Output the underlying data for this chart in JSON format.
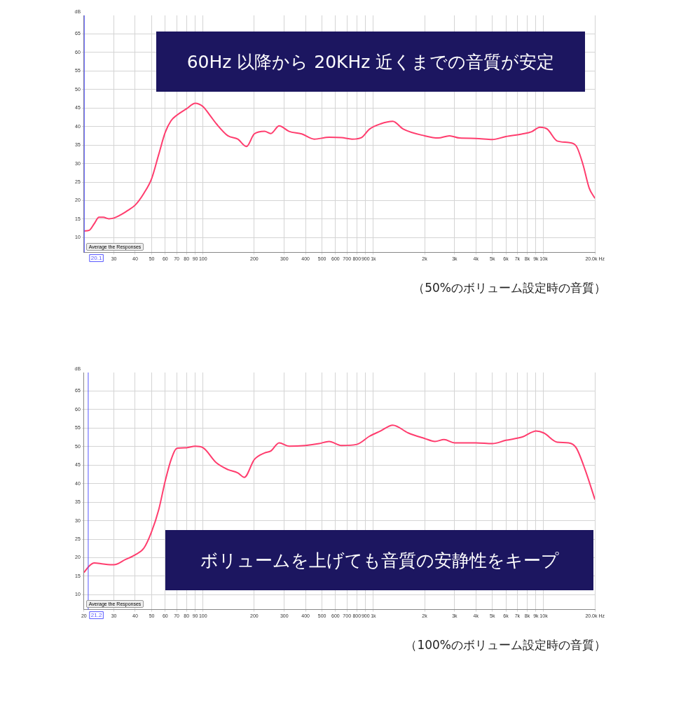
{
  "chart_data": [
    {
      "type": "line",
      "title": "60Hz 以降から 20KHz 近くまでの音質が安定",
      "ylabel": "dB",
      "log": "x",
      "grid": true,
      "legend": false,
      "marker": "none",
      "line_style": "solid",
      "xlim": [
        20,
        20000
      ],
      "ylim": [
        6,
        70
      ],
      "xticks": [
        30,
        40,
        50,
        60,
        70,
        80,
        90,
        100,
        200,
        300,
        400,
        500,
        600,
        700,
        800,
        900,
        {
          "value": 1000,
          "label": "1k"
        },
        {
          "value": 2000,
          "label": "2k"
        },
        {
          "value": 3000,
          "label": "3k"
        },
        {
          "value": 4000,
          "label": "4k"
        },
        {
          "value": 5000,
          "label": "5k"
        },
        {
          "value": 6000,
          "label": "6k"
        },
        {
          "value": 7000,
          "label": "7k"
        },
        {
          "value": 8000,
          "label": "8k"
        },
        {
          "value": 9000,
          "label": "9k"
        },
        {
          "value": 10000,
          "label": "10k"
        },
        {
          "value": 20000,
          "label": "20.0k Hz"
        }
      ],
      "yticks": [
        10,
        15,
        20,
        25,
        30,
        35,
        40,
        45,
        50,
        55,
        60,
        65
      ],
      "ref_lines": [
        {
          "axis": "x",
          "value": 20.1,
          "label": "20.1",
          "color": "#5555ff"
        }
      ],
      "annotations": [
        "（50%のボリューム設定時の音質）",
        "Average the Responses"
      ],
      "series": [
        {
          "color": "#ff3d6e",
          "x": [
            20,
            21.5,
            23,
            24.5,
            26,
            28,
            30,
            33,
            36,
            40,
            45,
            50,
            55,
            60,
            65,
            70,
            80,
            90,
            100,
            110,
            120,
            140,
            160,
            180,
            200,
            230,
            250,
            280,
            320,
            380,
            450,
            550,
            650,
            750,
            850,
            950,
            1100,
            1300,
            1500,
            2000,
            2400,
            2800,
            3200,
            4000,
            5000,
            6000,
            7500,
            8500,
            9500,
            10500,
            12000,
            14000,
            15500,
            17000,
            18500,
            20000
          ],
          "values": [
            11.8,
            12.0,
            13.8,
            15.5,
            15.5,
            15.1,
            15.3,
            16.2,
            17.3,
            18.8,
            22,
            26,
            32.5,
            38.4,
            41.6,
            43,
            44.8,
            46.3,
            45.4,
            43,
            40.7,
            37.5,
            36.6,
            34.6,
            38,
            38.7,
            38.1,
            40.2,
            38.7,
            38,
            36.6,
            37.1,
            37,
            36.6,
            37,
            39.3,
            40.7,
            41.4,
            39.3,
            37.5,
            36.9,
            37.5,
            36.9,
            36.8,
            36.5,
            37.3,
            38,
            38.6,
            39.8,
            39.3,
            36.1,
            35.7,
            34.8,
            29.8,
            23.4,
            20.6
          ]
        }
      ]
    },
    {
      "type": "line",
      "title": "ボリュームを上げても音質の安静性をキープ",
      "ylabel": "dB",
      "log": "x",
      "grid": true,
      "legend": false,
      "marker": "none",
      "line_style": "solid",
      "xlim": [
        20,
        20000
      ],
      "ylim": [
        6,
        70
      ],
      "xticks": [
        20,
        30,
        40,
        50,
        60,
        70,
        80,
        90,
        100,
        200,
        300,
        400,
        500,
        600,
        700,
        800,
        900,
        {
          "value": 1000,
          "label": "1k"
        },
        {
          "value": 2000,
          "label": "2k"
        },
        {
          "value": 3000,
          "label": "3k"
        },
        {
          "value": 4000,
          "label": "4k"
        },
        {
          "value": 5000,
          "label": "5k"
        },
        {
          "value": 6000,
          "label": "6k"
        },
        {
          "value": 7000,
          "label": "7k"
        },
        {
          "value": 8000,
          "label": "8k"
        },
        {
          "value": 9000,
          "label": "9k"
        },
        {
          "value": 10000,
          "label": "10k"
        },
        {
          "value": 20000,
          "label": "20.0k Hz"
        }
      ],
      "yticks": [
        10,
        15,
        20,
        25,
        30,
        35,
        40,
        45,
        50,
        55,
        60,
        65
      ],
      "ref_lines": [
        {
          "axis": "x",
          "value": 21.2,
          "label": "21.2",
          "color": "#5555ff"
        }
      ],
      "annotations": [
        "（100%のボリューム設定時の音質）",
        "Average the Responses"
      ],
      "series": [
        {
          "color": "#ff3d6e",
          "x": [
            20,
            21.5,
            23,
            26,
            30,
            35,
            40,
            45,
            50,
            55,
            60,
            65,
            70,
            80,
            90,
            100,
            120,
            140,
            160,
            175,
            200,
            230,
            250,
            280,
            320,
            400,
            480,
            550,
            650,
            800,
            950,
            1100,
            1300,
            1600,
            2000,
            2300,
            2600,
            3000,
            4000,
            5000,
            6000,
            7500,
            9000,
            10000,
            12000,
            14000,
            15500,
            17500,
            20000
          ],
          "values": [
            16,
            17.8,
            18.6,
            18.3,
            18.1,
            19.5,
            20.8,
            22.6,
            27.1,
            33,
            40.7,
            46.5,
            49.5,
            49.7,
            50.1,
            49.7,
            45.6,
            43.8,
            42.9,
            41.7,
            46.5,
            48.3,
            48.8,
            51,
            50.1,
            50.3,
            50.8,
            51.4,
            50.3,
            50.6,
            52.8,
            54.2,
            55.8,
            53.7,
            52.2,
            51.4,
            51.9,
            51,
            51,
            50.8,
            51.7,
            52.6,
            54.2,
            53.7,
            51.2,
            51,
            49.7,
            43.8,
            35.7
          ]
        }
      ]
    }
  ]
}
